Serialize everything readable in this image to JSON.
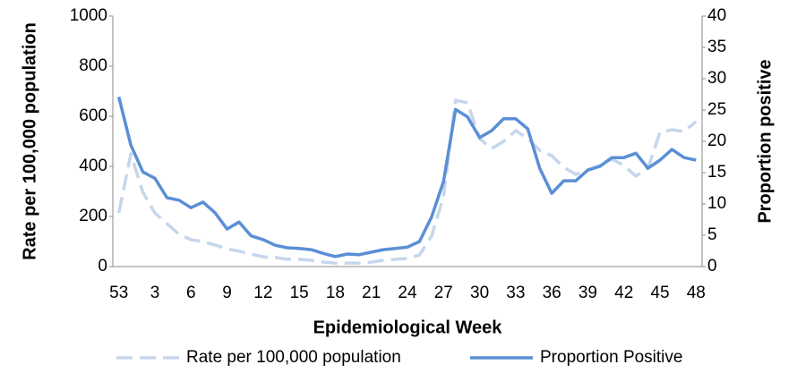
{
  "chart_data": {
    "type": "line",
    "x_label": "Epidemiological Week",
    "y_label": "Rate per 100,000 population",
    "y2_label": "Proportion positive",
    "categories": [
      "53",
      null,
      null,
      "3",
      null,
      null,
      "6",
      null,
      null,
      "9",
      null,
      null,
      "12",
      null,
      null,
      "15",
      null,
      null,
      "18",
      null,
      null,
      "21",
      null,
      null,
      "24",
      null,
      null,
      "27",
      null,
      null,
      "30",
      null,
      null,
      "33",
      null,
      null,
      "36",
      null,
      null,
      "39",
      null,
      null,
      "42",
      null,
      null,
      "45",
      null,
      null,
      "48"
    ],
    "series": [
      {
        "name": "Rate per 100,000 population",
        "color": "#c6d6ec",
        "dashed": true,
        "values": [
          214,
          450,
          296,
          214,
          171,
          129,
          107,
          100,
          86,
          71,
          61,
          50,
          39,
          36,
          29,
          29,
          25,
          18,
          14,
          14,
          14,
          18,
          25,
          29,
          32,
          46,
          121,
          279,
          664,
          654,
          511,
          471,
          500,
          543,
          511,
          464,
          443,
          396,
          368,
          386,
          404,
          429,
          404,
          361,
          393,
          536,
          546,
          539,
          579
        ]
      },
      {
        "name": "Proportion Positive",
        "color": "#5a8fd6",
        "axis": "y2",
        "values": [
          27.1,
          19.4,
          15.1,
          14.1,
          11,
          10.6,
          9.4,
          10.3,
          8.6,
          6,
          7.1,
          4.9,
          4.3,
          3.4,
          3,
          2.9,
          2.7,
          2.1,
          1.6,
          2,
          1.9,
          2.3,
          2.7,
          2.9,
          3.1,
          4,
          7.9,
          13.6,
          25.1,
          23.9,
          20.6,
          21.7,
          23.6,
          23.6,
          22,
          15.7,
          11.7,
          13.7,
          13.7,
          15.4,
          16,
          17.4,
          17.4,
          18.1,
          15.7,
          17,
          18.7,
          17.4,
          17
        ]
      }
    ],
    "ylim": [
      0,
      1000
    ],
    "yticks": [
      0,
      200,
      400,
      600,
      800,
      1000
    ],
    "y2lim": [
      0,
      40
    ],
    "y2ticks": [
      0,
      5,
      10,
      15,
      20,
      25,
      30,
      35,
      40
    ],
    "legend": "bottom"
  }
}
